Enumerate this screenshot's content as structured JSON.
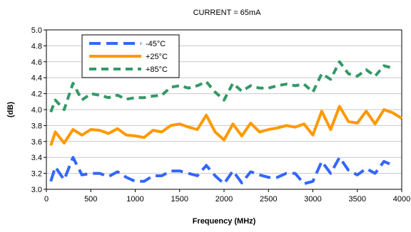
{
  "chart_data": {
    "type": "line",
    "title": "CURRENT =  65mA",
    "xlabel": "Frequency (MHz)",
    "ylabel": "(dB)",
    "xlim": [
      0,
      4000
    ],
    "ylim": [
      3.0,
      5.0
    ],
    "x_ticks": [
      "0",
      "500",
      "1000",
      "1500",
      "2000",
      "2500",
      "3000",
      "3500",
      "4000"
    ],
    "y_ticks": [
      "3.0",
      "3.2",
      "3.4",
      "3.6",
      "3.8",
      "4.0",
      "4.2",
      "4.4",
      "4.6",
      "4.8",
      "5.0"
    ],
    "grid": "horizontal",
    "legend_position": "top-left",
    "series": [
      {
        "name": "-45°C",
        "color": "#3366ff",
        "dash": "long-dash",
        "x": [
          50,
          100,
          200,
          300,
          400,
          500,
          600,
          700,
          800,
          900,
          1000,
          1100,
          1200,
          1300,
          1400,
          1500,
          1600,
          1700,
          1800,
          1900,
          2000,
          2100,
          2200,
          2300,
          2400,
          2500,
          2600,
          2700,
          2800,
          2900,
          3000,
          3100,
          3200,
          3300,
          3400,
          3500,
          3600,
          3700,
          3800,
          3900
        ],
        "values": [
          3.1,
          3.28,
          3.12,
          3.4,
          3.18,
          3.2,
          3.2,
          3.16,
          3.22,
          3.15,
          3.1,
          3.1,
          3.17,
          3.17,
          3.23,
          3.23,
          3.2,
          3.17,
          3.3,
          3.17,
          3.07,
          3.23,
          3.08,
          3.22,
          3.18,
          3.15,
          3.15,
          3.2,
          3.2,
          3.07,
          3.1,
          3.35,
          3.2,
          3.4,
          3.24,
          3.18,
          3.26,
          3.2,
          3.35,
          3.3
        ]
      },
      {
        "name": "+25°C",
        "color": "#ff9900",
        "dash": "solid",
        "x": [
          50,
          100,
          200,
          300,
          400,
          500,
          600,
          700,
          800,
          900,
          1000,
          1100,
          1200,
          1300,
          1400,
          1500,
          1600,
          1700,
          1800,
          1900,
          2000,
          2100,
          2200,
          2300,
          2400,
          2500,
          2600,
          2700,
          2800,
          2900,
          3000,
          3100,
          3200,
          3300,
          3400,
          3500,
          3600,
          3700,
          3800,
          3900,
          4000
        ],
        "values": [
          3.55,
          3.72,
          3.58,
          3.75,
          3.68,
          3.75,
          3.74,
          3.7,
          3.76,
          3.68,
          3.67,
          3.65,
          3.74,
          3.72,
          3.8,
          3.82,
          3.78,
          3.75,
          3.93,
          3.72,
          3.62,
          3.82,
          3.67,
          3.83,
          3.72,
          3.75,
          3.77,
          3.8,
          3.78,
          3.82,
          3.68,
          3.98,
          3.75,
          4.04,
          3.85,
          3.83,
          3.98,
          3.82,
          4.0,
          3.96,
          3.89
        ]
      },
      {
        "name": "+85°C",
        "color": "#339966",
        "dash": "dash",
        "x": [
          50,
          100,
          200,
          300,
          400,
          500,
          600,
          700,
          800,
          900,
          1000,
          1100,
          1200,
          1300,
          1400,
          1500,
          1600,
          1700,
          1800,
          1900,
          2000,
          2100,
          2200,
          2300,
          2400,
          2500,
          2600,
          2700,
          2800,
          2900,
          3000,
          3100,
          3200,
          3300,
          3400,
          3500,
          3600,
          3700,
          3800,
          3900
        ],
        "values": [
          3.97,
          4.12,
          4.0,
          4.33,
          4.12,
          4.2,
          4.18,
          4.15,
          4.18,
          4.13,
          4.15,
          4.15,
          4.17,
          4.18,
          4.28,
          4.3,
          4.27,
          4.3,
          4.35,
          4.22,
          4.12,
          4.33,
          4.23,
          4.3,
          4.27,
          4.27,
          4.3,
          4.32,
          4.3,
          4.32,
          4.22,
          4.45,
          4.38,
          4.6,
          4.45,
          4.42,
          4.5,
          4.42,
          4.55,
          4.52
        ]
      }
    ]
  }
}
